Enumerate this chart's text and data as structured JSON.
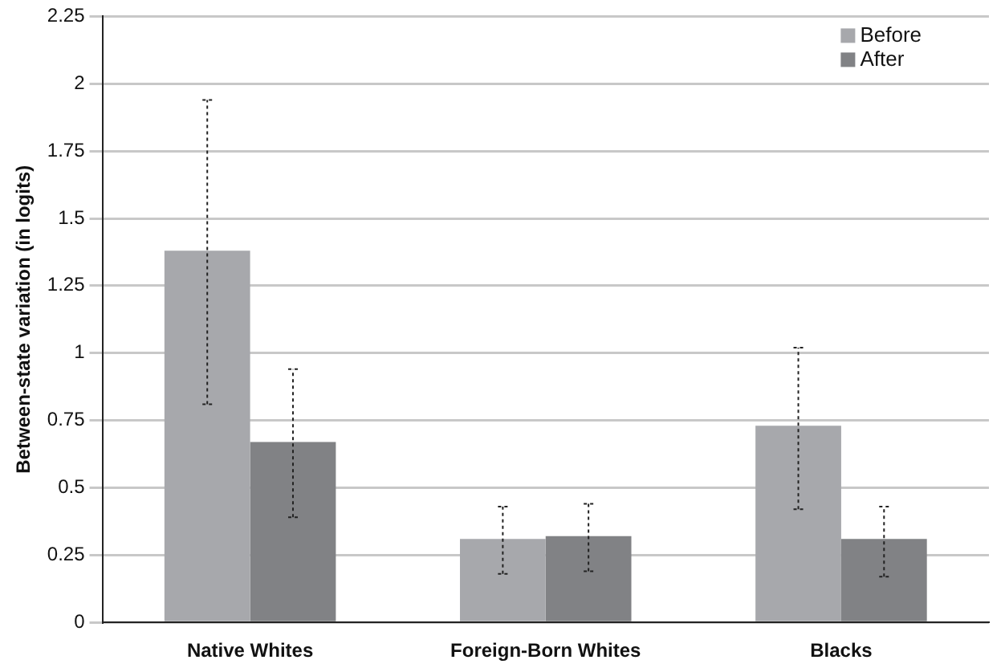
{
  "chart_data": {
    "type": "bar",
    "ylabel": "Between-state variation (in logits)",
    "categories": [
      "Native Whites",
      "Foreign-Born Whites",
      "Blacks"
    ],
    "series": [
      {
        "name": "Before",
        "color": "#a7a8ac",
        "values": [
          1.38,
          0.31,
          0.73
        ],
        "errors": [
          [
            0.81,
            1.94
          ],
          [
            0.18,
            0.43
          ],
          [
            0.42,
            1.02
          ]
        ]
      },
      {
        "name": "After",
        "color": "#818285",
        "values": [
          0.67,
          0.32,
          0.31
        ],
        "errors": [
          [
            0.39,
            0.94
          ],
          [
            0.19,
            0.44
          ],
          [
            0.17,
            0.43
          ]
        ]
      }
    ],
    "ylim": [
      0,
      2.25
    ],
    "yticks": [
      0,
      0.25,
      0.5,
      0.75,
      1,
      1.25,
      1.5,
      1.75,
      2,
      2.25
    ],
    "grid": "y",
    "legend": "top right",
    "line_style": "dotted"
  }
}
